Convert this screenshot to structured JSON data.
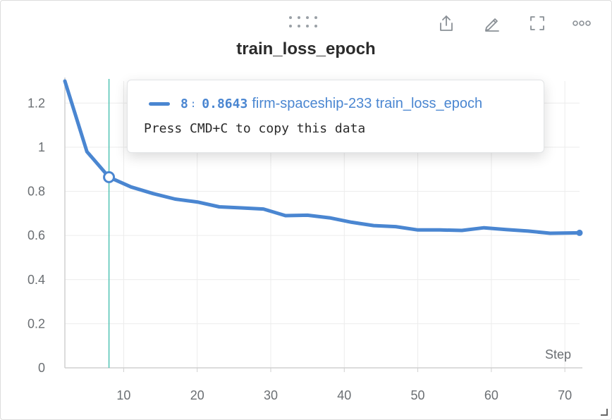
{
  "toolbar": {
    "icons": [
      "drag-handle-icon",
      "share-icon",
      "edit-icon",
      "fullscreen-icon",
      "more-icon"
    ]
  },
  "colors": {
    "series": "#4a86d1",
    "crosshair": "#4fc3b3",
    "grid": "#ececec",
    "axis": "#d0d0d0",
    "text": "#6b6f73"
  },
  "tooltip": {
    "step": "8",
    "separator": ":",
    "value": "0.8643",
    "run_name": "firm-spaceship-233 train_loss_epoch",
    "hint": "Press CMD+C to copy this data"
  },
  "chart_data": {
    "type": "line",
    "title": "train_loss_epoch",
    "xlabel": "Step",
    "ylabel": "",
    "xlim": [
      2,
      72
    ],
    "ylim": [
      0,
      1.3
    ],
    "x_ticks": [
      10,
      20,
      30,
      40,
      50,
      60,
      70
    ],
    "y_ticks": [
      0,
      0.2,
      0.4,
      0.6,
      0.8,
      1,
      1.2
    ],
    "y_tick_labels": [
      "0",
      "0.2",
      "0.4",
      "0.6",
      "0.8",
      "1",
      "1.2"
    ],
    "grid": true,
    "highlight": {
      "x": 8,
      "y": 0.8643
    },
    "series": [
      {
        "name": "firm-spaceship-233 train_loss_epoch",
        "x": [
          2,
          5,
          8,
          11,
          14,
          17,
          20,
          23,
          26,
          29,
          32,
          35,
          38,
          41,
          44,
          47,
          50,
          53,
          56,
          59,
          62,
          65,
          68,
          72
        ],
        "y": [
          1.3,
          0.98,
          0.8643,
          0.82,
          0.79,
          0.765,
          0.752,
          0.73,
          0.725,
          0.72,
          0.69,
          0.692,
          0.68,
          0.66,
          0.645,
          0.64,
          0.625,
          0.625,
          0.623,
          0.635,
          0.627,
          0.62,
          0.61,
          0.612
        ]
      }
    ]
  }
}
